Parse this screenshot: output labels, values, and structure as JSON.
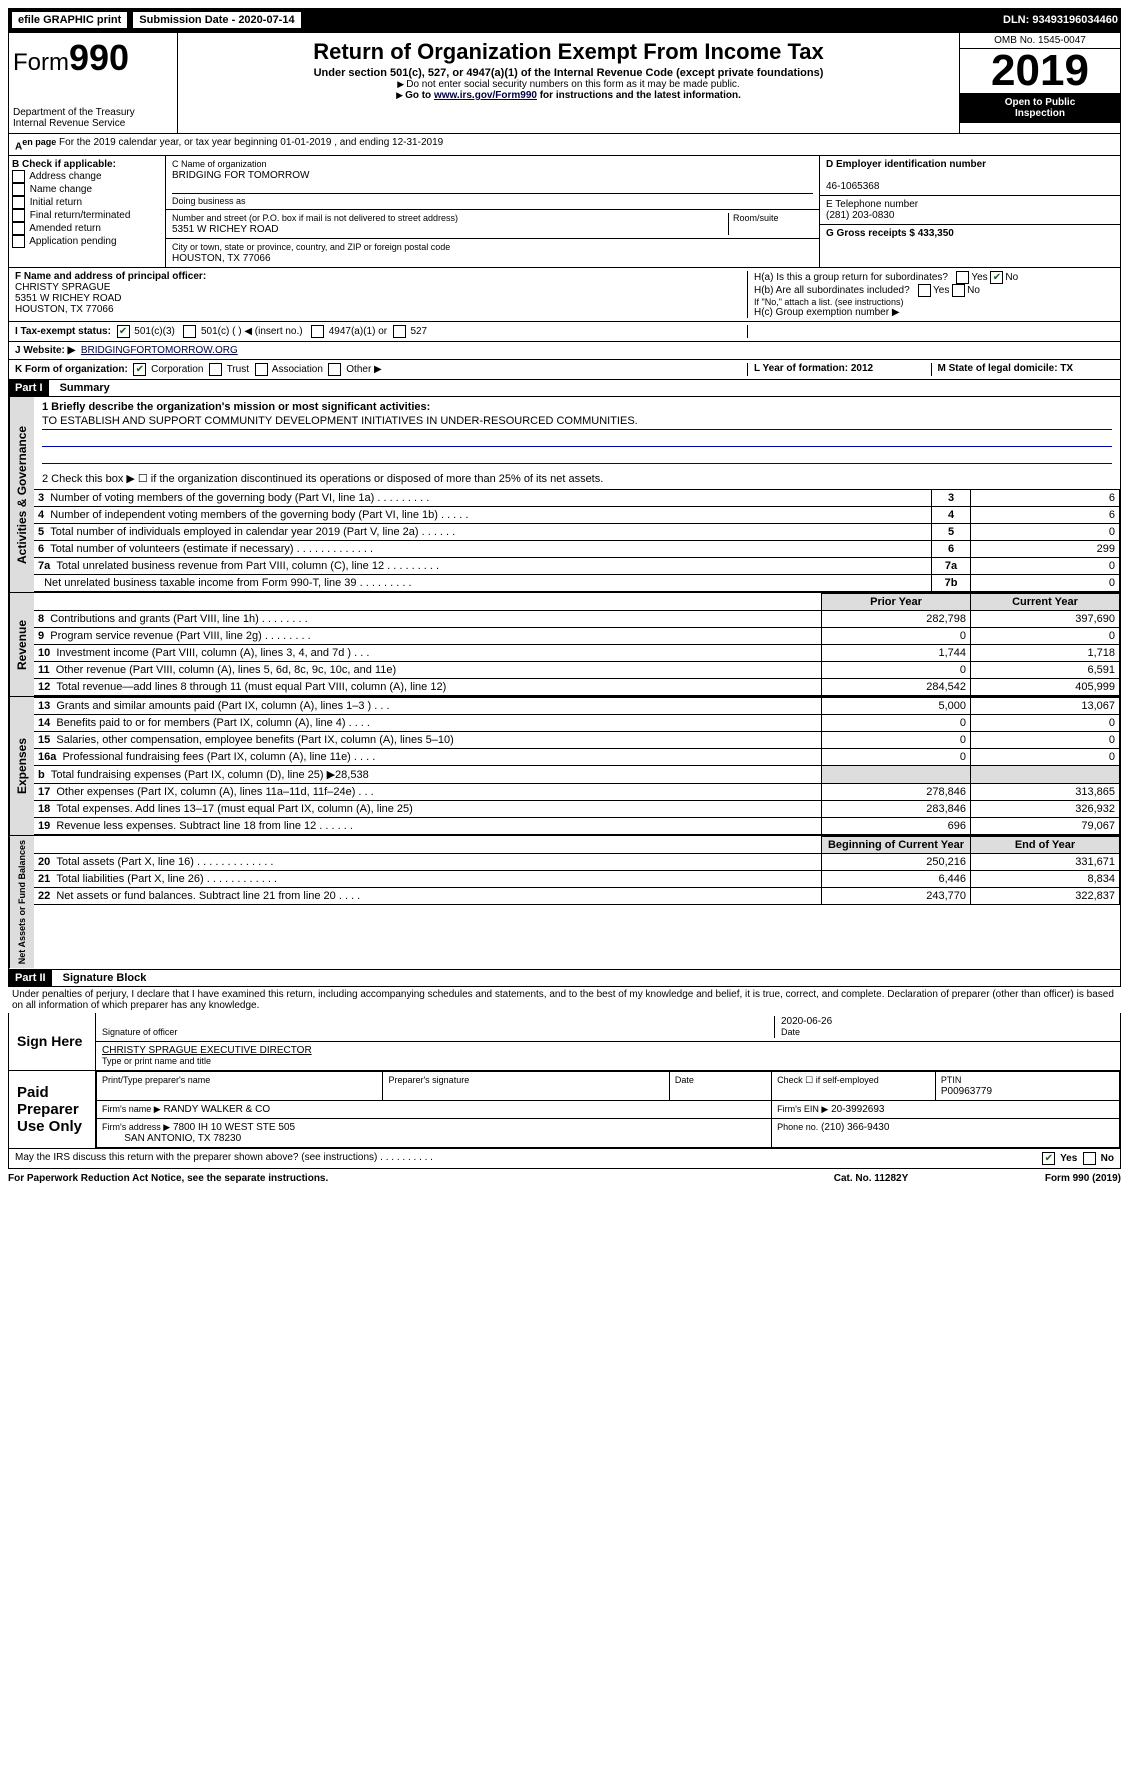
{
  "topbar": {
    "efile": "efile GRAPHIC print",
    "submission_label": "Submission Date - 2020-07-14",
    "dln": "DLN: 93493196034460"
  },
  "header": {
    "form_word": "Form",
    "form_num": "990",
    "dept1": "Department of the Treasury",
    "dept2": "Internal Revenue Service",
    "title": "Return of Organization Exempt From Income Tax",
    "sub": "Under section 501(c), 527, or 4947(a)(1) of the Internal Revenue Code (except private foundations)",
    "note1": "Do not enter social security numbers on this form as it may be made public.",
    "note2_pre": "Go to ",
    "note2_link": "www.irs.gov/Form990",
    "note2_post": " for instructions and the latest information.",
    "omb": "OMB No. 1545-0047",
    "year": "2019",
    "open1": "Open to Public",
    "open2": "Inspection"
  },
  "line_a": "For the 2019 calendar year, or tax year beginning 01-01-2019   , and ending 12-31-2019",
  "section_b": {
    "label": "B Check if applicable:",
    "opts": [
      "Address change",
      "Name change",
      "Initial return",
      "Final return/terminated",
      "Amended return",
      "Application pending"
    ]
  },
  "section_c": {
    "name_label": "C Name of organization",
    "name": "BRIDGING FOR TOMORROW",
    "dba_label": "Doing business as",
    "addr_label": "Number and street (or P.O. box if mail is not delivered to street address)",
    "room_label": "Room/suite",
    "addr": "5351 W RICHEY ROAD",
    "city_label": "City or town, state or province, country, and ZIP or foreign postal code",
    "city": "HOUSTON, TX  77066"
  },
  "section_d": {
    "label": "D Employer identification number",
    "ein": "46-1065368",
    "e_label": "E Telephone number",
    "phone": "(281) 203-0830",
    "g_label": "G Gross receipts $ 433,350"
  },
  "section_f": {
    "label": "F  Name and address of principal officer:",
    "name": "CHRISTY SPRAGUE",
    "addr1": "5351 W RICHEY ROAD",
    "addr2": "HOUSTON, TX  77066"
  },
  "section_h": {
    "ha": "H(a)  Is this a group return for subordinates?",
    "hb": "H(b)  Are all subordinates included?",
    "hb_note": "If \"No,\" attach a list. (see instructions)",
    "hc": "H(c)  Group exemption number ▶"
  },
  "section_i": {
    "label": "I    Tax-exempt status:",
    "o1": "501(c)(3)",
    "o2": "501(c) (   ) ◀ (insert no.)",
    "o3": "4947(a)(1) or",
    "o4": "527"
  },
  "section_j": {
    "label": "J    Website: ▶",
    "val": "BRIDGINGFORTOMORROW.ORG"
  },
  "section_k": {
    "label": "K Form of organization:",
    "o1": "Corporation",
    "o2": "Trust",
    "o3": "Association",
    "o4": "Other ▶",
    "l": "L Year of formation: 2012",
    "m": "M State of legal domicile: TX"
  },
  "part1": {
    "title": "Part I",
    "subtitle": "Summary",
    "line1_label": "1  Briefly describe the organization's mission or most significant activities:",
    "mission": "TO ESTABLISH AND SUPPORT COMMUNITY DEVELOPMENT INITIATIVES IN UNDER-RESOURCED COMMUNITIES.",
    "line2": "2   Check this box ▶ ☐  if the organization discontinued its operations or disposed of more than 25% of its net assets.",
    "rows_top": [
      {
        "n": "3",
        "desc": "Number of voting members of the governing body (Part VI, line 1a)   .    .    .    .    .    .    .    .    .",
        "box": "3",
        "val": "6"
      },
      {
        "n": "4",
        "desc": "Number of independent voting members of the governing body (Part VI, line 1b)    .    .    .    .    .",
        "box": "4",
        "val": "6"
      },
      {
        "n": "5",
        "desc": "Total number of individuals employed in calendar year 2019 (Part V, line 2a)   .    .    .    .    .    .",
        "box": "5",
        "val": "0"
      },
      {
        "n": "6",
        "desc": "Total number of volunteers (estimate if necessary)    .    .    .    .    .    .    .    .    .    .    .    .    .",
        "box": "6",
        "val": "299"
      },
      {
        "n": "7a",
        "desc": "Total unrelated business revenue from Part VIII, column (C), line 12   .    .    .    .    .    .    .    .    .",
        "box": "7a",
        "val": "0"
      },
      {
        "n": "",
        "desc": "Net unrelated business taxable income from Form 990-T, line 39    .    .    .    .    .    .    .    .    .",
        "box": "7b",
        "val": "0"
      }
    ],
    "col_headers": {
      "prior": "Prior Year",
      "current": "Current Year"
    },
    "revenue_rows": [
      {
        "n": "8",
        "desc": "Contributions and grants (Part VIII, line 1h)    .    .    .    .    .    .    .    .",
        "p": "282,798",
        "c": "397,690"
      },
      {
        "n": "9",
        "desc": "Program service revenue (Part VIII, line 2g)    .    .    .    .    .    .    .    .",
        "p": "0",
        "c": "0"
      },
      {
        "n": "10",
        "desc": "Investment income (Part VIII, column (A), lines 3, 4, and 7d )    .    .    .",
        "p": "1,744",
        "c": "1,718"
      },
      {
        "n": "11",
        "desc": "Other revenue (Part VIII, column (A), lines 5, 6d, 8c, 9c, 10c, and 11e)",
        "p": "0",
        "c": "6,591"
      },
      {
        "n": "12",
        "desc": "Total revenue—add lines 8 through 11 (must equal Part VIII, column (A), line 12)",
        "p": "284,542",
        "c": "405,999"
      }
    ],
    "expense_rows": [
      {
        "n": "13",
        "desc": "Grants and similar amounts paid (Part IX, column (A), lines 1–3 )    .    .    .",
        "p": "5,000",
        "c": "13,067"
      },
      {
        "n": "14",
        "desc": "Benefits paid to or for members (Part IX, column (A), line 4)    .    .    .    .",
        "p": "0",
        "c": "0"
      },
      {
        "n": "15",
        "desc": "Salaries, other compensation, employee benefits (Part IX, column (A), lines 5–10)",
        "p": "0",
        "c": "0"
      },
      {
        "n": "16a",
        "desc": "Professional fundraising fees (Part IX, column (A), line 11e)    .    .    .    .",
        "p": "0",
        "c": "0"
      },
      {
        "n": "b",
        "desc": "Total fundraising expenses (Part IX, column (D), line 25) ▶28,538",
        "p": "",
        "c": ""
      },
      {
        "n": "17",
        "desc": "Other expenses (Part IX, column (A), lines 11a–11d, 11f–24e)    .    .    .",
        "p": "278,846",
        "c": "313,865"
      },
      {
        "n": "18",
        "desc": "Total expenses. Add lines 13–17 (must equal Part IX, column (A), line 25)",
        "p": "283,846",
        "c": "326,932"
      },
      {
        "n": "19",
        "desc": "Revenue less expenses. Subtract line 18 from line 12   .    .    .    .    .    .",
        "p": "696",
        "c": "79,067"
      }
    ],
    "net_headers": {
      "b": "Beginning of Current Year",
      "e": "End of Year"
    },
    "net_rows": [
      {
        "n": "20",
        "desc": "Total assets (Part X, line 16)   .    .    .    .    .    .    .    .    .    .    .    .    .",
        "p": "250,216",
        "c": "331,671"
      },
      {
        "n": "21",
        "desc": "Total liabilities (Part X, line 26)    .    .    .    .    .    .    .    .    .    .    .    .",
        "p": "6,446",
        "c": "8,834"
      },
      {
        "n": "22",
        "desc": "Net assets or fund balances. Subtract line 21 from line 20   .    .    .    .",
        "p": "243,770",
        "c": "322,837"
      }
    ],
    "side_gov": "Activities & Governance",
    "side_rev": "Revenue",
    "side_exp": "Expenses",
    "side_net": "Net Assets or Fund Balances"
  },
  "part2": {
    "title": "Part II",
    "subtitle": "Signature Block",
    "perjury": "Under penalties of perjury, I declare that I have examined this return, including accompanying schedules and statements, and to the best of my knowledge and belief, it is true, correct, and complete. Declaration of preparer (other than officer) is based on all information of which preparer has any knowledge.",
    "sign_here": "Sign Here",
    "sig_officer": "Signature of officer",
    "sig_date": "2020-06-26",
    "date_label": "Date",
    "officer_name": "CHRISTY SPRAGUE  EXECUTIVE DIRECTOR",
    "type_name": "Type or print name and title",
    "paid": "Paid Preparer Use Only",
    "prep_name_label": "Print/Type preparer's name",
    "prep_sig_label": "Preparer's signature",
    "prep_date_label": "Date",
    "self_emp": "Check ☐ if self-employed",
    "ptin_label": "PTIN",
    "ptin": "P00963779",
    "firm_name_label": "Firm's name    ▶",
    "firm_name": "RANDY WALKER & CO",
    "firm_ein_label": "Firm's EIN ▶",
    "firm_ein": "20-3992693",
    "firm_addr_label": "Firm's address ▶",
    "firm_addr1": "7800 IH 10 WEST STE 505",
    "firm_addr2": "SAN ANTONIO, TX  78230",
    "phone_label": "Phone no.",
    "phone": "(210) 366-9430",
    "discuss": "May the IRS discuss this return with the preparer shown above? (see instructions)    .    .    .    .    .    .    .    .    .    .",
    "yes": "Yes",
    "no": "No"
  },
  "footer": {
    "paperwork": "For Paperwork Reduction Act Notice, see the separate instructions.",
    "cat": "Cat. No. 11282Y",
    "form": "Form 990 (2019)"
  }
}
